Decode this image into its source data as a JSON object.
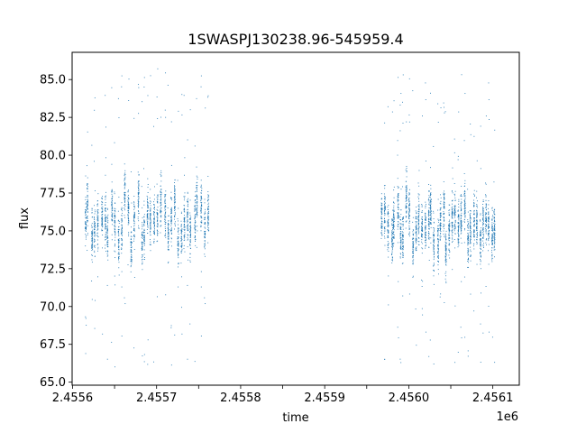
{
  "chart_data": {
    "type": "scatter",
    "title": "1SWASPJ130238.96-545959.4",
    "xlabel": "time",
    "ylabel": "flux",
    "x_offset_label": "1e6",
    "xlim": [
      2455599.5,
      2456131.5
    ],
    "ylim": [
      64.8,
      86.8
    ],
    "x_ticks": [
      2455600,
      2455650,
      2455700,
      2455750,
      2455800,
      2455850,
      2455900,
      2455950,
      2456000,
      2456050,
      2456100
    ],
    "x_tick_labels": [
      "2.4556",
      "",
      "2.4557",
      "",
      "2.4558",
      "",
      "2.4559",
      "",
      "2.4560",
      "",
      "2.4561"
    ],
    "y_ticks": [
      65.0,
      67.5,
      70.0,
      72.5,
      75.0,
      77.5,
      80.0,
      82.5,
      85.0
    ],
    "y_tick_labels": [
      "65.0",
      "67.5",
      "70.0",
      "72.5",
      "75.0",
      "77.5",
      "80.0",
      "82.5",
      "85.0"
    ],
    "grid": false,
    "marker_color": "#1f77b4",
    "series": [
      {
        "segments": [
          {
            "t_start": 2455613,
            "t_end": 2455763,
            "flux_center": 75.8,
            "flux_spread": 1.6,
            "outlier_range": [
              65.8,
              85.8
            ],
            "n_points": 2200
          },
          {
            "t_start": 2455967,
            "t_end": 2456105,
            "flux_center": 75.6,
            "flux_spread": 1.6,
            "outlier_range": [
              66.0,
              85.4
            ],
            "n_points": 2400
          }
        ]
      }
    ]
  }
}
